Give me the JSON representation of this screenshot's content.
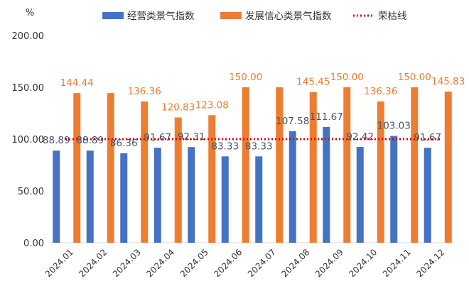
{
  "chart_data": {
    "type": "bar",
    "y_unit": "%",
    "categories": [
      "2024.01",
      "2024.02",
      "2024.03",
      "2024.04",
      "2024.05",
      "2024.06",
      "2024.07",
      "2024.08",
      "2024.09",
      "2024.10",
      "2024.11",
      "2024.12"
    ],
    "series": [
      {
        "name": "经营类景气指数",
        "color": "#4472C4",
        "label_color": "#44546A",
        "values": [
          88.89,
          88.89,
          86.36,
          91.67,
          92.31,
          83.33,
          83.33,
          107.58,
          111.67,
          92.42,
          103.03,
          91.67
        ],
        "value_labels": [
          "88.89",
          "88.89",
          "86.36",
          "91.67",
          "92.31",
          "83.33",
          "83.33",
          "107.58",
          "111.67",
          "92.42",
          "103.03",
          "91.67"
        ]
      },
      {
        "name": "发展信心类景气指数",
        "color": "#ED7D31",
        "label_color": "#ED7D31",
        "values": [
          144.44,
          144.44,
          136.36,
          120.83,
          123.08,
          150.0,
          150.0,
          145.45,
          150.0,
          136.36,
          150.0,
          145.83
        ],
        "value_labels": [
          "144.44",
          "",
          "136.36",
          "120.83",
          "123.08",
          "150.00",
          "",
          "145.45",
          "150.00",
          "136.36",
          "150.00",
          "145.83"
        ]
      }
    ],
    "reference_line": {
      "name": "荣枯线",
      "value": 100,
      "color": "#E00000",
      "style": "dotted"
    },
    "ylim": [
      0,
      200
    ],
    "y_ticks": [
      0,
      50,
      100,
      150,
      200
    ],
    "y_tick_labels": [
      "0.00",
      "50.00",
      "100.00",
      "150.00",
      "200.00"
    ],
    "legend_position": "top",
    "grid": false
  }
}
